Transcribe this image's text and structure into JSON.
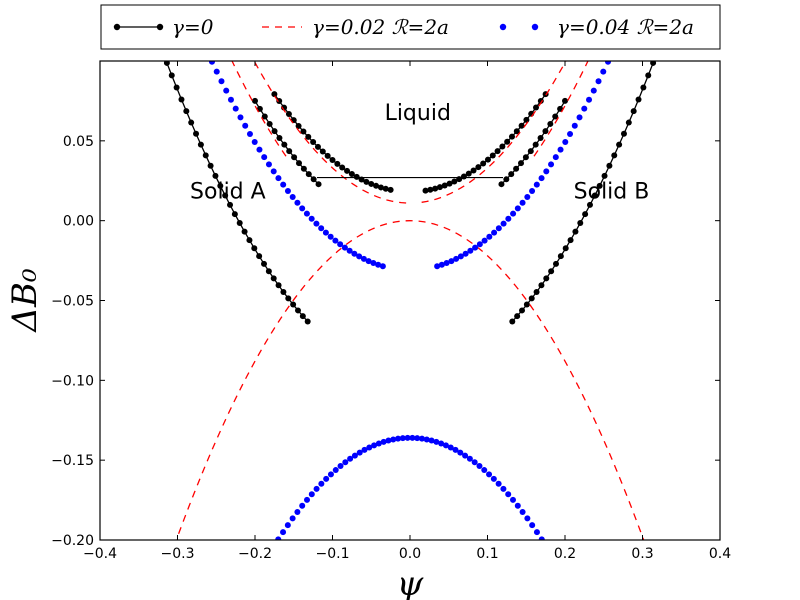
{
  "chart_data": {
    "type": "line",
    "xlabel": "ψ",
    "ylabel": "ΔB₀",
    "xlim": [
      -0.4,
      0.4
    ],
    "ylim": [
      -0.2,
      0.1
    ],
    "x_ticks": [
      {
        "value": -0.4,
        "label": "−0.4"
      },
      {
        "value": -0.3,
        "label": "−0.3"
      },
      {
        "value": -0.2,
        "label": "−0.2"
      },
      {
        "value": -0.1,
        "label": "−0.1"
      },
      {
        "value": 0.0,
        "label": "0.0"
      },
      {
        "value": 0.1,
        "label": "0.1"
      },
      {
        "value": 0.2,
        "label": "0.2"
      },
      {
        "value": 0.3,
        "label": "0.3"
      },
      {
        "value": 0.4,
        "label": "0.4"
      }
    ],
    "y_ticks": [
      {
        "value": 0.05,
        "label": "0.05"
      },
      {
        "value": 0.0,
        "label": "0.00"
      },
      {
        "value": -0.05,
        "label": "−0.05"
      },
      {
        "value": -0.1,
        "label": "−0.10"
      },
      {
        "value": -0.15,
        "label": "−0.15"
      },
      {
        "value": -0.2,
        "label": "−0.20"
      }
    ],
    "grid": false,
    "legend_placement": "top, outside plot",
    "annotations": [
      {
        "text": "Liquid",
        "x": 0.01,
        "y": 0.063
      },
      {
        "text": "Solid A",
        "x": -0.235,
        "y": 0.014
      },
      {
        "text": "Solid B",
        "x": 0.26,
        "y": 0.014
      }
    ],
    "tie_line": {
      "x": [
        -0.12,
        0.12
      ],
      "y": 0.027
    },
    "series": [
      {
        "name": "γ=0",
        "style": "line-dots",
        "color": "#000000",
        "curves": [
          {
            "a": 0.018,
            "b": 2.0,
            "x": [
              -0.025,
              -0.175
            ]
          },
          {
            "a": 0.018,
            "b": 2.0,
            "x": [
              0.02,
              0.175
            ]
          },
          {
            "a": -0.098,
            "b": 2.0,
            "x": [
              -0.132,
              -0.345
            ]
          },
          {
            "a": -0.098,
            "b": 2.0,
            "x": [
              0.132,
              0.345
            ]
          },
          {
            "a": -0.005,
            "b": 2.0,
            "x": [
              -0.118,
              -0.2
            ]
          },
          {
            "a": -0.005,
            "b": 2.0,
            "x": [
              0.118,
              0.2
            ]
          }
        ]
      },
      {
        "name": "γ=0.02 ℛ=2a",
        "style": "dashed",
        "color": "#ff0000",
        "curves": [
          {
            "a": 0.0,
            "b": -2.2,
            "x": [
              -0.31,
              0.31
            ]
          },
          {
            "a": 0.011,
            "b": 2.2,
            "x": [
              -0.005,
              -0.21
            ]
          },
          {
            "a": 0.011,
            "b": 2.2,
            "x": [
              0.015,
              0.21
            ]
          },
          {
            "a": -0.016,
            "b": 2.2,
            "x": [
              -0.16,
              -0.24
            ]
          },
          {
            "a": -0.016,
            "b": 2.2,
            "x": [
              0.16,
              0.24
            ]
          }
        ]
      },
      {
        "name": "γ=0.04 ℛ=2a",
        "style": "dots",
        "color": "#0000ff",
        "curves": [
          {
            "a": -0.031,
            "b": 2.0,
            "x": [
              -0.035,
              -0.28
            ]
          },
          {
            "a": -0.031,
            "b": 2.0,
            "x": [
              0.035,
              0.28
            ]
          },
          {
            "a": -0.136,
            "b": -2.2,
            "x": [
              -0.17,
              0.17
            ]
          }
        ]
      }
    ]
  }
}
